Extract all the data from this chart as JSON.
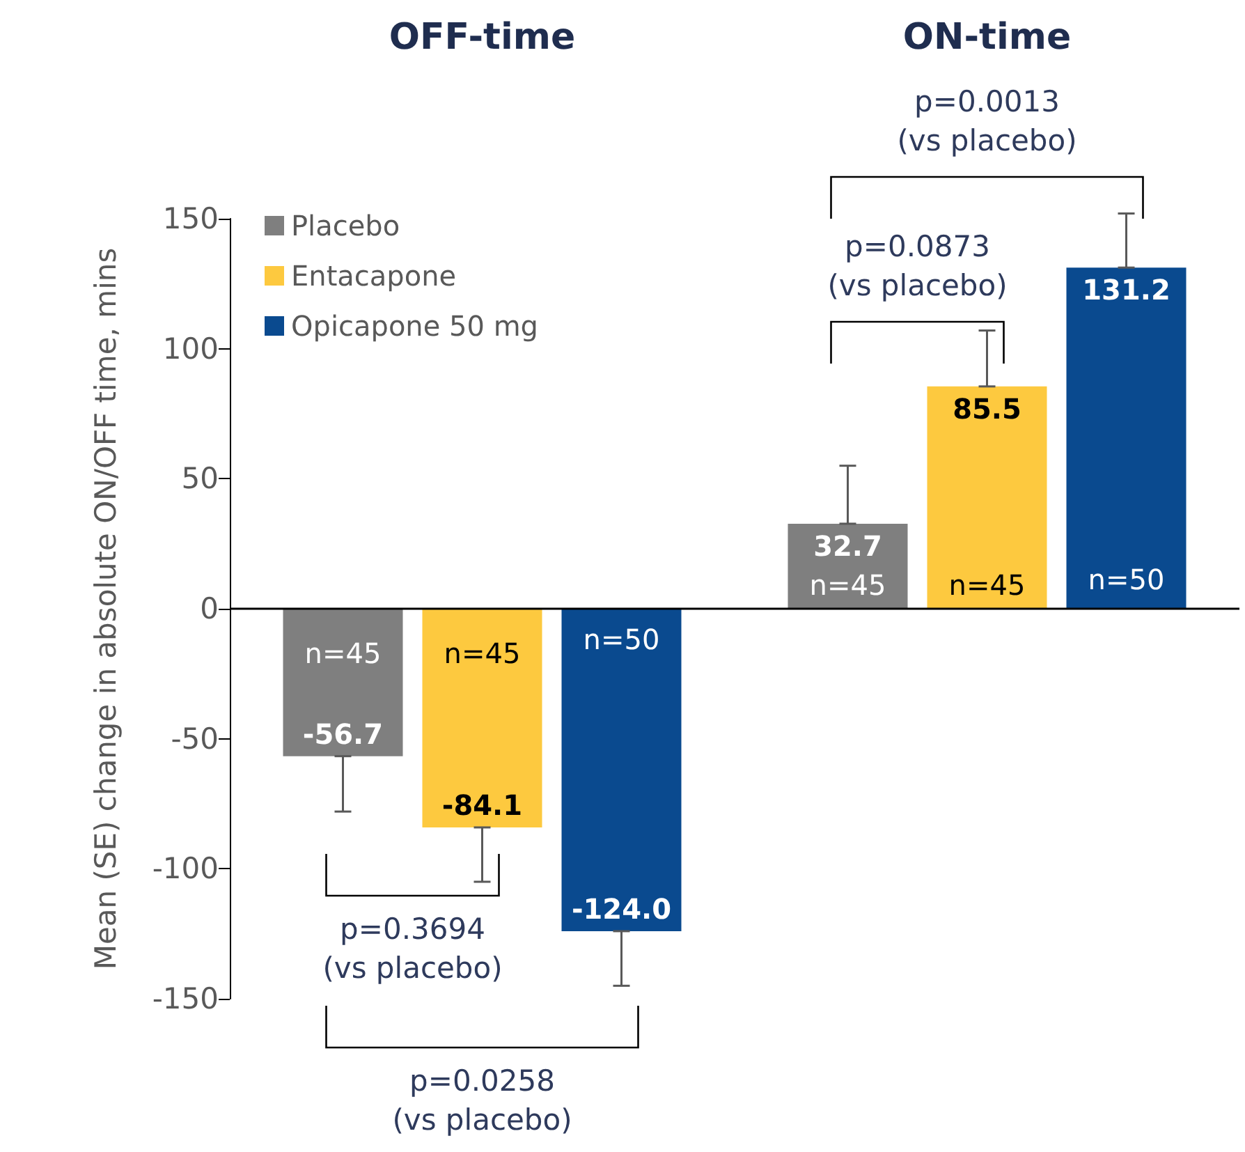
{
  "chart_data": {
    "type": "bar",
    "categories": [
      "OFF-time",
      "ON-time"
    ],
    "ylabel": "Mean (SE) change in absolute ON/OFF time, mins",
    "series": [
      {
        "name": "Placebo",
        "color": "#7f7f7f",
        "values": [
          -56.7,
          32.7
        ],
        "value_labels": [
          "-56.7",
          "32.7"
        ],
        "errors": [
          [
            -78,
            -56.7
          ],
          [
            32.7,
            55
          ]
        ]
      },
      {
        "name": "Entacapone",
        "color": "#fdc93f",
        "values": [
          -84.1,
          85.5
        ],
        "value_labels": [
          "-84.1",
          "85.5"
        ],
        "errors": [
          [
            -105,
            -84.1
          ],
          [
            85.5,
            107
          ]
        ]
      },
      {
        "name": "Opicapone 50 mg",
        "color": "#0a4a8f",
        "values": [
          -124.0,
          131.2
        ],
        "value_labels": [
          "-124.0",
          "131.2"
        ],
        "errors": [
          [
            -145,
            -124.0
          ],
          [
            131.2,
            152
          ]
        ]
      }
    ],
    "ylim": [
      -150,
      150
    ],
    "yticks": [
      -150,
      -100,
      -50,
      0,
      50,
      100,
      150
    ],
    "grid": false,
    "legend": "top left",
    "ref_lines": [
      {
        "axis": "y",
        "value": 0,
        "color": "#000000",
        "line_style": "solid"
      }
    ],
    "annotations": [
      "n=45",
      "n=45",
      "n=50",
      "n=45",
      "n=45",
      "n=50",
      "p=0.3694\n(vs placebo)",
      "p=0.0258\n(vs placebo)",
      "p=0.0873\n(vs placebo)",
      "p=0.0013\n(vs placebo)"
    ]
  }
}
